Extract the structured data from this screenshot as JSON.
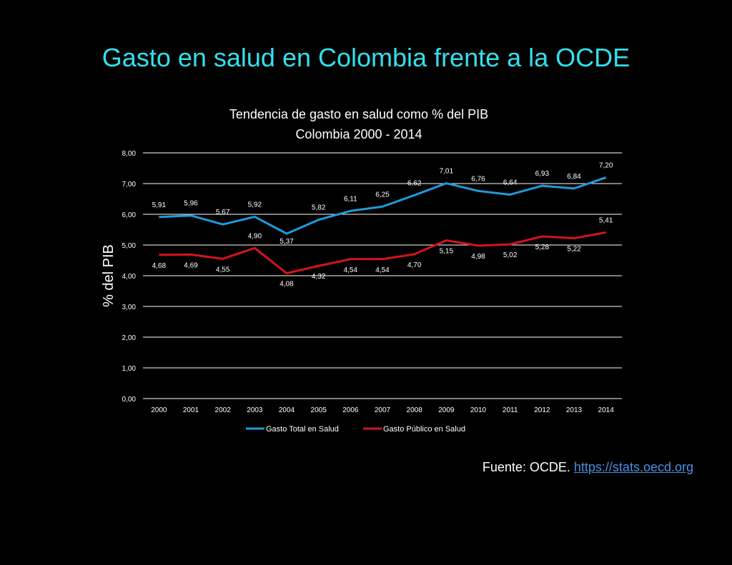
{
  "slide": {
    "title": "Gasto en salud en Colombia frente a la OCDE",
    "source_prefix": "Fuente: OCDE.",
    "source_link": "https://stats.oecd.org"
  },
  "colors": {
    "background": "#000000",
    "title": "#33e0ec",
    "series_total": "#1f9bdc",
    "series_public": "#d4141b",
    "grid": "#ffffff",
    "link": "#4a90e2"
  },
  "chart_data": {
    "type": "line",
    "title": "Tendencia de gasto en salud como % del PIB",
    "subtitle": "Colombia 2000 - 2014",
    "xlabel": "",
    "ylabel": "% del PIB",
    "ylim": [
      0,
      8
    ],
    "yticks": [
      "0,00",
      "1,00",
      "2,00",
      "3,00",
      "4,00",
      "5,00",
      "6,00",
      "7,00",
      "8,00"
    ],
    "grid": true,
    "legend_position": "bottom",
    "categories": [
      "2000",
      "2001",
      "2002",
      "2003",
      "2004",
      "2005",
      "2006",
      "2007",
      "2008",
      "2009",
      "2010",
      "2011",
      "2012",
      "2013",
      "2014"
    ],
    "series": [
      {
        "name": "Gasto Total en Salud",
        "values": [
          5.91,
          5.96,
          5.67,
          5.92,
          5.37,
          5.82,
          6.11,
          6.25,
          6.62,
          7.01,
          6.76,
          6.64,
          6.93,
          6.84,
          7.2
        ],
        "labels": [
          "5,91",
          "5,96",
          "5,67",
          "5,92",
          "5,37",
          "5,82",
          "6,11",
          "6,25",
          "6,62",
          "7,01",
          "6,76",
          "6,64",
          "6,93",
          "6,84",
          "7,20"
        ]
      },
      {
        "name": "Gasto Público en Salud",
        "values": [
          4.68,
          4.69,
          4.55,
          4.9,
          4.08,
          4.32,
          4.54,
          4.54,
          4.7,
          5.15,
          4.98,
          5.02,
          5.28,
          5.22,
          5.41
        ],
        "labels": [
          "4,68",
          "4,69",
          "4,55",
          "4,90",
          "4,08",
          "4,32",
          "4,54",
          "4,54",
          "4,70",
          "5,15",
          "4,98",
          "5,02",
          "5,28",
          "5,22",
          "5,41"
        ]
      }
    ]
  }
}
